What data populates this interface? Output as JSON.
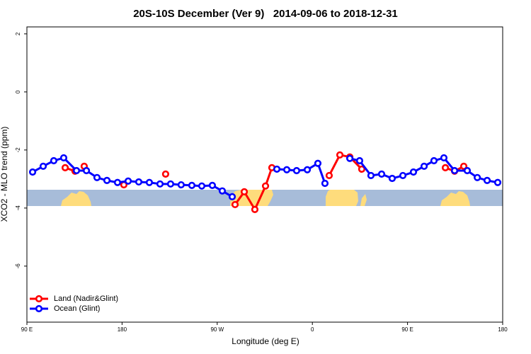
{
  "chart_data": {
    "type": "line",
    "title": "20S-10S December (Ver 9)   2014-09-06 to 2018-12-31",
    "x_label": "Longitude (deg E)",
    "y_label": "XCO2 - MLO trend (ppm)",
    "xlim": [
      90,
      540
    ],
    "ylim": [
      -7.93,
      2.24
    ],
    "xticks": [
      {
        "value": 90,
        "label": "90 E"
      },
      {
        "value": 180,
        "label": "180"
      },
      {
        "value": 270,
        "label": "90 W"
      },
      {
        "value": 360,
        "label": "0"
      },
      {
        "value": 450,
        "label": "90 E"
      },
      {
        "value": 540,
        "label": "180"
      }
    ],
    "yticks": [
      2,
      0,
      -2,
      -4,
      -6
    ],
    "legend": "bottom-left",
    "series": [
      {
        "name": "Land (Nadir&Glint)",
        "color": "#ff0000",
        "x": [
          126.2,
          135.5,
          null,
          144.2,
          null,
          181.7,
          null,
          221.2,
          null,
          286.9,
          295.6,
          305.6,
          315.7,
          321.7,
          null,
          375.9,
          386.0,
          395.4,
          406.7,
          null,
          485.8,
          494.5,
          503.2
        ],
        "values": [
          -2.61,
          -2.73,
          null,
          -2.56,
          null,
          -3.2,
          null,
          -2.83,
          null,
          -3.88,
          -3.44,
          -4.05,
          -3.24,
          -2.61,
          null,
          -2.88,
          -2.17,
          -2.24,
          -2.66,
          null,
          -2.61,
          -2.73,
          -2.56
        ]
      },
      {
        "name": "Ocean (Glint)",
        "color": "#0000ff",
        "x": [
          95.4,
          105.4,
          115.4,
          124.8,
          136.9,
          146.3,
          156.3,
          165.7,
          175.7,
          185.8,
          195.8,
          205.8,
          215.9,
          225.9,
          235.9,
          246.0,
          255.4,
          265.4,
          274.8,
          284.2,
          null,
          326.4,
          335.8,
          345.1,
          355.2,
          365.2,
          371.9,
          null,
          395.4,
          404.7,
          415.4,
          425.5,
          435.5,
          445.6,
          455.6,
          465.7,
          475.0,
          484.4,
          494.5,
          506.5,
          516.0,
          525.3,
          535.3
        ],
        "values": [
          -2.76,
          -2.56,
          -2.37,
          -2.27,
          -2.71,
          -2.71,
          -2.95,
          -3.05,
          -3.12,
          -3.07,
          -3.1,
          -3.12,
          -3.17,
          -3.17,
          -3.2,
          -3.22,
          -3.24,
          -3.22,
          -3.41,
          -3.61,
          null,
          -2.66,
          -2.68,
          -2.71,
          -2.68,
          -2.46,
          -3.15,
          null,
          -2.29,
          -2.37,
          -2.88,
          -2.83,
          -2.98,
          -2.88,
          -2.76,
          -2.56,
          -2.37,
          -2.27,
          -2.71,
          -2.71,
          -2.95,
          -3.05,
          -3.12
        ]
      }
    ]
  }
}
